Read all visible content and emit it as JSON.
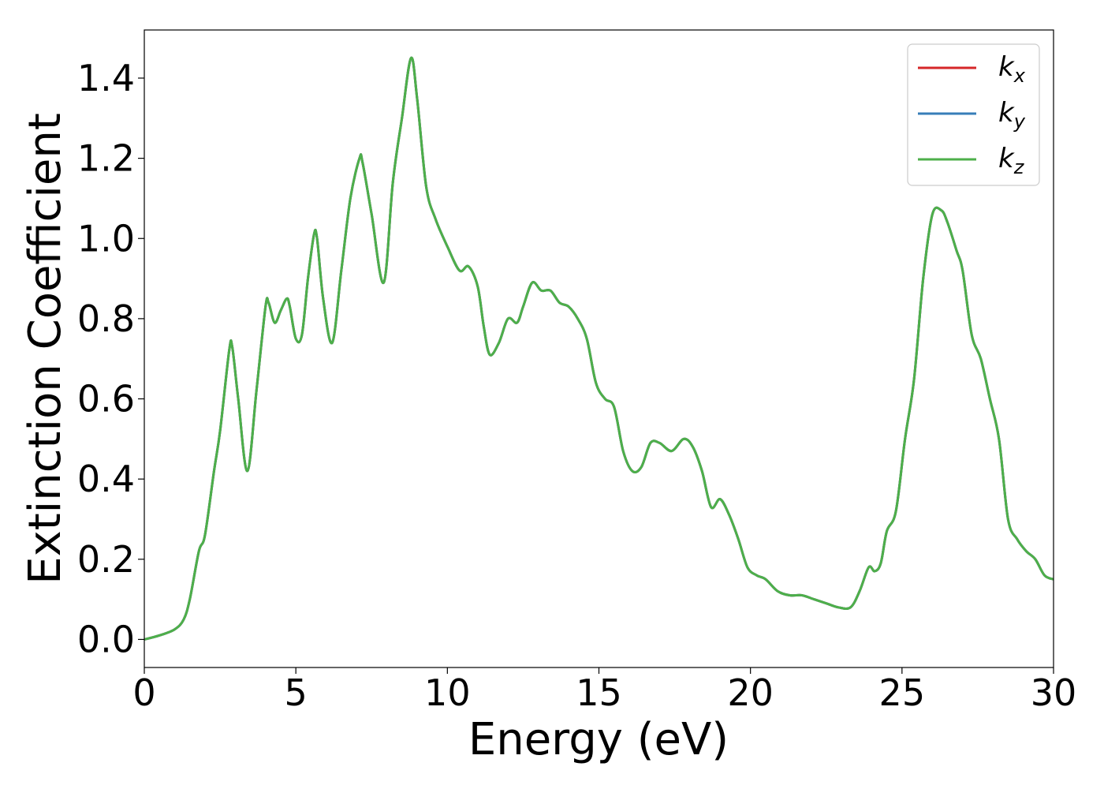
{
  "chart_data": {
    "type": "line",
    "xlabel": "Energy (eV)",
    "ylabel": "Extinction Coefficient",
    "xlim": [
      0,
      30
    ],
    "ylim": [
      -0.07,
      1.52
    ],
    "xticks": [
      0,
      5,
      10,
      15,
      20,
      25,
      30
    ],
    "xtick_labels": [
      "0",
      "5",
      "10",
      "15",
      "20",
      "25",
      "30"
    ],
    "yticks": [
      0.0,
      0.2,
      0.4,
      0.6,
      0.8,
      1.0,
      1.2,
      1.4
    ],
    "ytick_labels": [
      "0.0",
      "0.2",
      "0.4",
      "0.6",
      "0.8",
      "1.0",
      "1.2",
      "1.4"
    ],
    "grid": false,
    "legend_position": "top-right",
    "series": [
      {
        "name": "k_x",
        "label_base": "k",
        "label_sub": "x",
        "color": "#d62728",
        "x": [
          0,
          0.5,
          1.0,
          1.3,
          1.5,
          1.8,
          2.0,
          2.3,
          2.5,
          2.8,
          2.9,
          3.1,
          3.4,
          3.7,
          4.0,
          4.1,
          4.3,
          4.5,
          4.7,
          4.8,
          5.0,
          5.2,
          5.4,
          5.6,
          5.7,
          5.9,
          6.2,
          6.5,
          6.8,
          7.1,
          7.2,
          7.5,
          7.9,
          8.2,
          8.5,
          8.8,
          9.0,
          9.3,
          9.6,
          10.0,
          10.4,
          10.7,
          11.0,
          11.2,
          11.4,
          11.7,
          12.0,
          12.3,
          12.5,
          12.8,
          13.1,
          13.4,
          13.7,
          14.0,
          14.3,
          14.6,
          14.9,
          15.2,
          15.5,
          15.8,
          16.1,
          16.4,
          16.7,
          17.0,
          17.4,
          17.8,
          18.1,
          18.4,
          18.7,
          19.0,
          19.3,
          19.6,
          19.9,
          20.2,
          20.5,
          20.9,
          21.3,
          21.7,
          22.1,
          22.5,
          22.9,
          23.3,
          23.6,
          23.9,
          24.1,
          24.3,
          24.5,
          24.8,
          25.1,
          25.4,
          25.7,
          26.0,
          26.3,
          26.5,
          26.8,
          27.0,
          27.3,
          27.6,
          27.9,
          28.2,
          28.5,
          28.8,
          29.1,
          29.4,
          29.7,
          30.0
        ],
        "y": [
          0.0,
          0.01,
          0.025,
          0.05,
          0.1,
          0.22,
          0.26,
          0.42,
          0.52,
          0.72,
          0.73,
          0.6,
          0.42,
          0.62,
          0.83,
          0.84,
          0.79,
          0.82,
          0.85,
          0.83,
          0.75,
          0.76,
          0.9,
          1.01,
          1.0,
          0.85,
          0.74,
          0.92,
          1.1,
          1.2,
          1.19,
          1.06,
          0.89,
          1.14,
          1.3,
          1.45,
          1.35,
          1.13,
          1.05,
          0.98,
          0.92,
          0.93,
          0.88,
          0.78,
          0.71,
          0.74,
          0.8,
          0.79,
          0.83,
          0.89,
          0.87,
          0.87,
          0.84,
          0.83,
          0.8,
          0.75,
          0.64,
          0.6,
          0.58,
          0.47,
          0.42,
          0.43,
          0.49,
          0.49,
          0.47,
          0.5,
          0.48,
          0.42,
          0.33,
          0.35,
          0.31,
          0.25,
          0.18,
          0.16,
          0.15,
          0.12,
          0.11,
          0.11,
          0.1,
          0.09,
          0.08,
          0.08,
          0.12,
          0.18,
          0.17,
          0.19,
          0.27,
          0.32,
          0.5,
          0.65,
          0.9,
          1.06,
          1.07,
          1.04,
          0.97,
          0.92,
          0.76,
          0.7,
          0.6,
          0.5,
          0.3,
          0.25,
          0.22,
          0.2,
          0.16,
          0.15
        ]
      },
      {
        "name": "k_y",
        "label_base": "k",
        "label_sub": "y",
        "color": "#377eb8",
        "x": [
          0,
          0.5,
          1.0,
          1.3,
          1.5,
          1.8,
          2.0,
          2.3,
          2.5,
          2.8,
          2.9,
          3.1,
          3.4,
          3.7,
          4.0,
          4.1,
          4.3,
          4.5,
          4.7,
          4.8,
          5.0,
          5.2,
          5.4,
          5.6,
          5.7,
          5.9,
          6.2,
          6.5,
          6.8,
          7.1,
          7.2,
          7.5,
          7.9,
          8.2,
          8.5,
          8.8,
          9.0,
          9.3,
          9.6,
          10.0,
          10.4,
          10.7,
          11.0,
          11.2,
          11.4,
          11.7,
          12.0,
          12.3,
          12.5,
          12.8,
          13.1,
          13.4,
          13.7,
          14.0,
          14.3,
          14.6,
          14.9,
          15.2,
          15.5,
          15.8,
          16.1,
          16.4,
          16.7,
          17.0,
          17.4,
          17.8,
          18.1,
          18.4,
          18.7,
          19.0,
          19.3,
          19.6,
          19.9,
          20.2,
          20.5,
          20.9,
          21.3,
          21.7,
          22.1,
          22.5,
          22.9,
          23.3,
          23.6,
          23.9,
          24.1,
          24.3,
          24.5,
          24.8,
          25.1,
          25.4,
          25.7,
          26.0,
          26.3,
          26.5,
          26.8,
          27.0,
          27.3,
          27.6,
          27.9,
          28.2,
          28.5,
          28.8,
          29.1,
          29.4,
          29.7,
          30.0
        ],
        "y": [
          0.0,
          0.01,
          0.025,
          0.05,
          0.1,
          0.22,
          0.26,
          0.42,
          0.52,
          0.72,
          0.73,
          0.6,
          0.42,
          0.62,
          0.83,
          0.84,
          0.79,
          0.82,
          0.85,
          0.83,
          0.75,
          0.76,
          0.9,
          1.01,
          1.0,
          0.85,
          0.74,
          0.92,
          1.1,
          1.2,
          1.19,
          1.06,
          0.89,
          1.14,
          1.3,
          1.45,
          1.35,
          1.13,
          1.05,
          0.98,
          0.92,
          0.93,
          0.88,
          0.78,
          0.71,
          0.74,
          0.8,
          0.79,
          0.83,
          0.89,
          0.87,
          0.87,
          0.84,
          0.83,
          0.8,
          0.75,
          0.64,
          0.6,
          0.58,
          0.47,
          0.42,
          0.43,
          0.49,
          0.49,
          0.47,
          0.5,
          0.48,
          0.42,
          0.33,
          0.35,
          0.31,
          0.25,
          0.18,
          0.16,
          0.15,
          0.12,
          0.11,
          0.11,
          0.1,
          0.09,
          0.08,
          0.08,
          0.12,
          0.18,
          0.17,
          0.19,
          0.27,
          0.32,
          0.5,
          0.65,
          0.9,
          1.06,
          1.07,
          1.04,
          0.97,
          0.92,
          0.76,
          0.7,
          0.6,
          0.5,
          0.3,
          0.25,
          0.22,
          0.2,
          0.16,
          0.15
        ]
      },
      {
        "name": "k_z",
        "label_base": "k",
        "label_sub": "z",
        "color": "#4daf4a",
        "x": [
          0,
          0.5,
          1.0,
          1.3,
          1.5,
          1.8,
          2.0,
          2.3,
          2.5,
          2.8,
          2.9,
          3.1,
          3.4,
          3.7,
          4.0,
          4.1,
          4.3,
          4.5,
          4.7,
          4.8,
          5.0,
          5.2,
          5.4,
          5.6,
          5.7,
          5.9,
          6.2,
          6.5,
          6.8,
          7.1,
          7.2,
          7.5,
          7.9,
          8.2,
          8.5,
          8.8,
          9.0,
          9.3,
          9.6,
          10.0,
          10.4,
          10.7,
          11.0,
          11.2,
          11.4,
          11.7,
          12.0,
          12.3,
          12.5,
          12.8,
          13.1,
          13.4,
          13.7,
          14.0,
          14.3,
          14.6,
          14.9,
          15.2,
          15.5,
          15.8,
          16.1,
          16.4,
          16.7,
          17.0,
          17.4,
          17.8,
          18.1,
          18.4,
          18.7,
          19.0,
          19.3,
          19.6,
          19.9,
          20.2,
          20.5,
          20.9,
          21.3,
          21.7,
          22.1,
          22.5,
          22.9,
          23.3,
          23.6,
          23.9,
          24.1,
          24.3,
          24.5,
          24.8,
          25.1,
          25.4,
          25.7,
          26.0,
          26.3,
          26.5,
          26.8,
          27.0,
          27.3,
          27.6,
          27.9,
          28.2,
          28.5,
          28.8,
          29.1,
          29.4,
          29.7,
          30.0
        ],
        "y": [
          0.0,
          0.01,
          0.025,
          0.05,
          0.1,
          0.22,
          0.26,
          0.42,
          0.52,
          0.72,
          0.73,
          0.6,
          0.42,
          0.62,
          0.83,
          0.84,
          0.79,
          0.82,
          0.85,
          0.83,
          0.75,
          0.76,
          0.9,
          1.01,
          1.0,
          0.85,
          0.74,
          0.92,
          1.1,
          1.2,
          1.19,
          1.06,
          0.89,
          1.14,
          1.3,
          1.45,
          1.35,
          1.13,
          1.05,
          0.98,
          0.92,
          0.93,
          0.88,
          0.78,
          0.71,
          0.74,
          0.8,
          0.79,
          0.83,
          0.89,
          0.87,
          0.87,
          0.84,
          0.83,
          0.8,
          0.75,
          0.64,
          0.6,
          0.58,
          0.47,
          0.42,
          0.43,
          0.49,
          0.49,
          0.47,
          0.5,
          0.48,
          0.42,
          0.33,
          0.35,
          0.31,
          0.25,
          0.18,
          0.16,
          0.15,
          0.12,
          0.11,
          0.11,
          0.1,
          0.09,
          0.08,
          0.08,
          0.12,
          0.18,
          0.17,
          0.19,
          0.27,
          0.32,
          0.5,
          0.65,
          0.9,
          1.06,
          1.07,
          1.04,
          0.97,
          0.92,
          0.76,
          0.7,
          0.6,
          0.5,
          0.3,
          0.25,
          0.22,
          0.2,
          0.16,
          0.15
        ]
      }
    ]
  }
}
